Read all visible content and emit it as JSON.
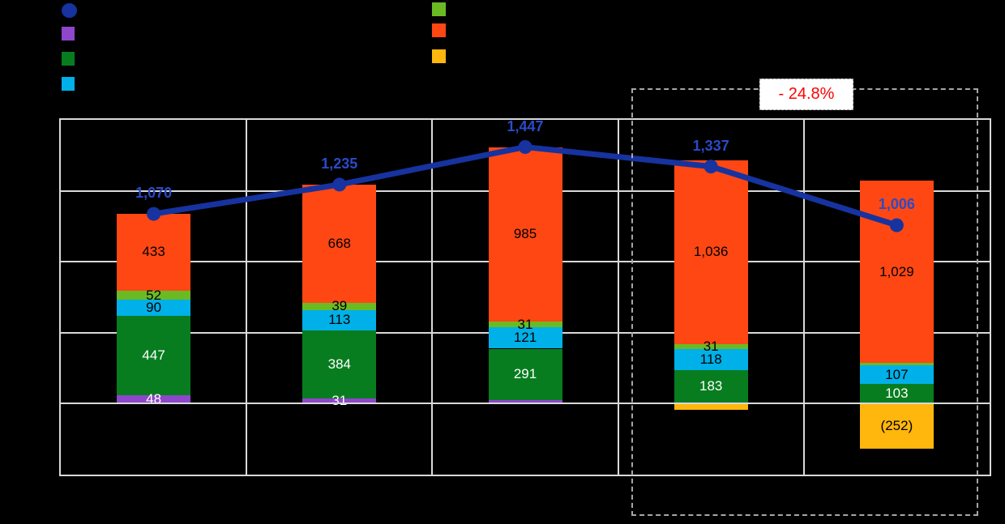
{
  "legend": {
    "left": [
      {
        "name": "total-line",
        "shape": "circle",
        "color": "#16339F"
      },
      {
        "name": "purple-series",
        "shape": "square",
        "color": "#8E47CB"
      },
      {
        "name": "dark-green-series",
        "shape": "square",
        "color": "#077D1F"
      },
      {
        "name": "cyan-series",
        "shape": "square",
        "color": "#00B0E8"
      }
    ],
    "right": [
      {
        "name": "yellow-green-series",
        "shape": "square",
        "color": "#6ABB23"
      },
      {
        "name": "orange-series",
        "shape": "square",
        "color": "#FF4713"
      },
      {
        "name": "amber-series",
        "shape": "square",
        "color": "#FFB60D"
      }
    ]
  },
  "annotation": {
    "label": "- 24.8%",
    "color": "#FF0000"
  },
  "chart_data": {
    "type": "bar",
    "subtype": "stacked-bar-with-total-line",
    "title": "",
    "xlabel": "",
    "ylabel": "",
    "categories": [
      "",
      "",
      "",
      "",
      ""
    ],
    "ylim": [
      -400,
      1600
    ],
    "grid_interval": 400,
    "grid": true,
    "legend_position": "top",
    "series": [
      {
        "name": "purple-segment",
        "color": "#8E47CB",
        "label_color": "#FFFFFF",
        "values": [
          48,
          31,
          19,
          5,
          7
        ],
        "labels": [
          "48",
          "31",
          "",
          "",
          ""
        ]
      },
      {
        "name": "dark-green-segment",
        "color": "#077D1F",
        "label_color": "#FFFFFF",
        "values": [
          447,
          384,
          291,
          183,
          103
        ],
        "labels": [
          "447",
          "384",
          "291",
          "183",
          "103"
        ]
      },
      {
        "name": "cyan-segment",
        "color": "#00B0E8",
        "label_color": "#000000",
        "values": [
          90,
          113,
          121,
          118,
          107
        ],
        "labels": [
          "90",
          "113",
          "121",
          "118",
          "107"
        ]
      },
      {
        "name": "yellow-green-segment",
        "color": "#6ABB23",
        "label_color": "#000000",
        "values": [
          52,
          39,
          31,
          31,
          12
        ],
        "labels": [
          "52",
          "39",
          "31",
          "31",
          ""
        ]
      },
      {
        "name": "orange-segment",
        "color": "#FF4713",
        "label_color": "#000000",
        "values": [
          433,
          668,
          985,
          1036,
          1029
        ],
        "labels": [
          "433",
          "668",
          "985",
          "1,036",
          "1,029"
        ]
      },
      {
        "name": "amber-segment",
        "color": "#FFB60D",
        "label_color": "#000000",
        "values": [
          0,
          0,
          0,
          -36,
          -252
        ],
        "labels": [
          "",
          "",
          "",
          "",
          "(252)"
        ]
      }
    ],
    "line_series": {
      "name": "total-line",
      "color": "#16339F",
      "label_color": "#2A4BC8",
      "values": [
        1070,
        1235,
        1447,
        1337,
        1006
      ],
      "labels": [
        "1,070",
        "1,235",
        "1,447",
        "1,337",
        "1,006"
      ]
    }
  }
}
